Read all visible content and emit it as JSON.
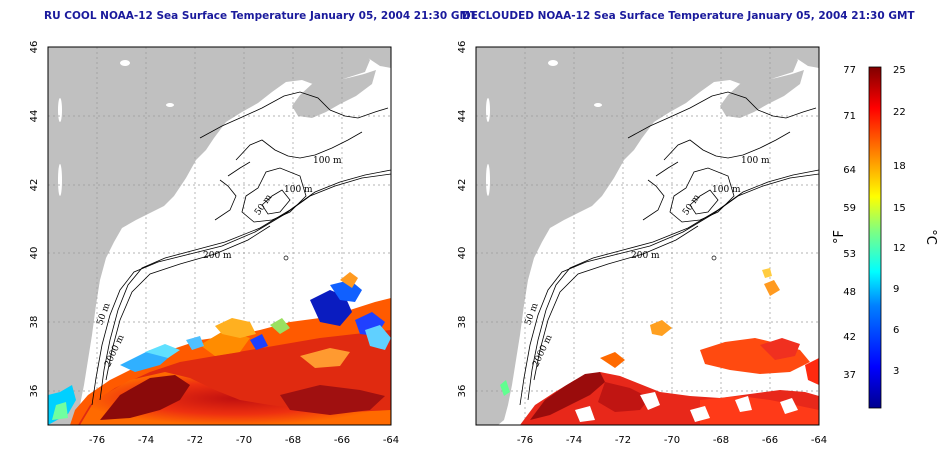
{
  "panels": [
    {
      "title": "RU COOL NOAA-12 Sea Surface Temperature January 05, 2004 21:30 GMT",
      "variant": "full"
    },
    {
      "title": "DECLOUDED NOAA-12 Sea Surface Temperature January 05, 2004 21:30 GMT",
      "variant": "declouded"
    }
  ],
  "map": {
    "lon_ticks": [
      "-76",
      "-74",
      "-72",
      "-70",
      "-68",
      "-66",
      "-64"
    ],
    "lat_ticks": [
      "36",
      "38",
      "40",
      "42",
      "44",
      "46"
    ],
    "lon_range": [
      -77,
      -63
    ],
    "lat_range": [
      35,
      46
    ],
    "contour_labels": [
      "100 m",
      "100 m",
      "50 m",
      "200 m",
      "50 m",
      "2000 m"
    ],
    "land_color": "#c0c0c0",
    "grid": true
  },
  "colorbar": {
    "f_ticks": [
      "77",
      "71",
      "64",
      "59",
      "53",
      "48",
      "42",
      "37"
    ],
    "c_ticks": [
      "25",
      "22",
      "18",
      "15",
      "12",
      "9",
      "6",
      "3"
    ],
    "f_label": "°F",
    "c_label": "°C",
    "colors": [
      "#00008f",
      "#0000ff",
      "#0080ff",
      "#00ffff",
      "#80ff80",
      "#ffff00",
      "#ff8000",
      "#ff0000",
      "#800000"
    ]
  }
}
